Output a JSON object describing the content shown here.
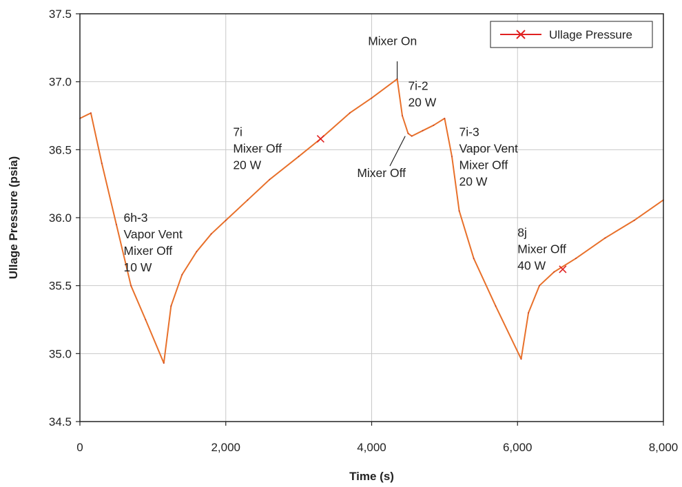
{
  "chart_data": {
    "type": "line",
    "title": "",
    "xlabel": "Time (s)",
    "ylabel": "Ullage Pressure (psia)",
    "xlim": [
      0,
      8000
    ],
    "ylim": [
      34.5,
      37.5
    ],
    "x_ticks": [
      0,
      2000,
      4000,
      6000,
      8000
    ],
    "x_tick_labels": [
      "0",
      "2,000",
      "4,000",
      "6,000",
      "8,000"
    ],
    "y_ticks": [
      34.5,
      35.0,
      35.5,
      36.0,
      36.5,
      37.0,
      37.5
    ],
    "y_tick_labels": [
      "34.5",
      "35.0",
      "35.5",
      "36.0",
      "36.5",
      "37.0",
      "37.5"
    ],
    "grid": true,
    "legend_position": "top-right",
    "series": [
      {
        "name": "Ullage Pressure",
        "color": "#e8702a",
        "marker_color": "#e02020",
        "marker": "x",
        "markers": [
          [
            3300,
            36.58
          ],
          [
            6620,
            35.62
          ]
        ],
        "points": [
          [
            0,
            36.73
          ],
          [
            150,
            36.77
          ],
          [
            300,
            36.4
          ],
          [
            500,
            35.95
          ],
          [
            700,
            35.5
          ],
          [
            900,
            35.25
          ],
          [
            1150,
            34.93
          ],
          [
            1250,
            35.35
          ],
          [
            1400,
            35.58
          ],
          [
            1600,
            35.75
          ],
          [
            1800,
            35.88
          ],
          [
            2000,
            35.98
          ],
          [
            2300,
            36.13
          ],
          [
            2600,
            36.28
          ],
          [
            3000,
            36.45
          ],
          [
            3300,
            36.58
          ],
          [
            3700,
            36.77
          ],
          [
            4000,
            36.88
          ],
          [
            4350,
            37.02
          ],
          [
            4420,
            36.75
          ],
          [
            4500,
            36.62
          ],
          [
            4550,
            36.6
          ],
          [
            4700,
            36.64
          ],
          [
            4850,
            36.68
          ],
          [
            5000,
            36.73
          ],
          [
            5100,
            36.45
          ],
          [
            5200,
            36.05
          ],
          [
            5400,
            35.7
          ],
          [
            5700,
            35.35
          ],
          [
            6050,
            34.96
          ],
          [
            6150,
            35.3
          ],
          [
            6300,
            35.5
          ],
          [
            6500,
            35.6
          ],
          [
            6800,
            35.7
          ],
          [
            7200,
            35.85
          ],
          [
            7600,
            35.98
          ],
          [
            8000,
            36.13
          ]
        ]
      }
    ],
    "annotations": [
      {
        "lines": [
          "6h-3",
          "Vapor Vent",
          "Mixer Off",
          "10 W"
        ],
        "x": 600,
        "y": 35.97
      },
      {
        "lines": [
          "7i",
          "Mixer Off",
          "20 W"
        ],
        "x": 2100,
        "y": 36.6
      },
      {
        "lines": [
          "Mixer On"
        ],
        "x": 3950,
        "y": 37.27
      },
      {
        "lines": [
          "7i-2",
          "20 W"
        ],
        "x": 4500,
        "y": 36.94
      },
      {
        "lines": [
          "Mixer Off"
        ],
        "x": 3800,
        "y": 36.3
      },
      {
        "lines": [
          "7i-3",
          "Vapor Vent",
          "Mixer Off",
          "20 W"
        ],
        "x": 5200,
        "y": 36.6
      },
      {
        "lines": [
          "8j",
          "Mixer Off",
          "40 W"
        ],
        "x": 6000,
        "y": 35.86
      }
    ],
    "leaders": [
      {
        "from": [
          4350,
          37.15
        ],
        "to": [
          4350,
          37.02
        ]
      },
      {
        "from": [
          4250,
          36.38
        ],
        "to": [
          4460,
          36.6
        ]
      }
    ]
  }
}
